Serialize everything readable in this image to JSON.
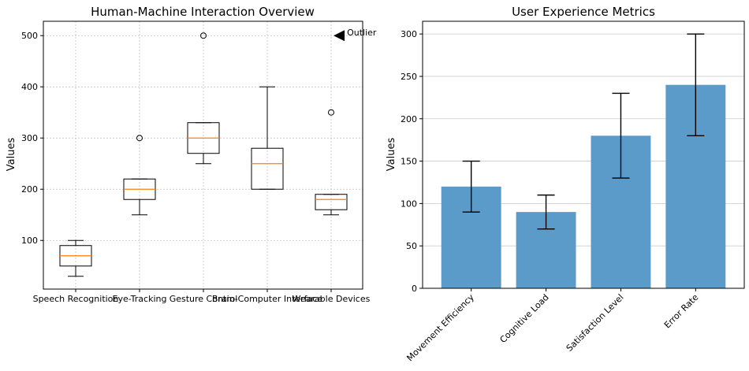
{
  "chart_data": [
    {
      "type": "box",
      "title": "Human-Machine Interaction Overview",
      "xlabel": "",
      "ylabel": "Values",
      "ylim": [
        5,
        528
      ],
      "yticks": [
        100,
        200,
        300,
        400,
        500
      ],
      "grid": true,
      "categories": [
        "Speech Recognition",
        "Eye-Tracking",
        "Gesture Control",
        "Brain-Computer Interface",
        "Wearable Devices"
      ],
      "boxes": [
        {
          "whisker_low": 30,
          "q1": 50,
          "median": 70,
          "q3": 90,
          "whisker_high": 100,
          "outliers": []
        },
        {
          "whisker_low": 150,
          "q1": 180,
          "median": 200,
          "q3": 220,
          "whisker_high": 220,
          "outliers": [
            300
          ]
        },
        {
          "whisker_low": 250,
          "q1": 270,
          "median": 300,
          "q3": 330,
          "whisker_high": 330,
          "outliers": [
            500
          ]
        },
        {
          "whisker_low": 200,
          "q1": 200,
          "median": 250,
          "q3": 280,
          "whisker_high": 400,
          "outliers": []
        },
        {
          "whisker_low": 150,
          "q1": 160,
          "median": 180,
          "q3": 190,
          "whisker_high": 190,
          "outliers": [
            350
          ]
        }
      ],
      "annotations": [
        {
          "text": "Outlier",
          "x_category_index": 4.1,
          "y": 500
        }
      ],
      "colors": {
        "box": "#000000",
        "median": "#ff7f0e",
        "grid": "#b0b0b0"
      }
    },
    {
      "type": "bar",
      "title": "User Experience Metrics",
      "xlabel": "",
      "ylabel": "Values",
      "ylim": [
        0,
        315
      ],
      "yticks": [
        0,
        50,
        100,
        150,
        200,
        250,
        300
      ],
      "grid": true,
      "categories": [
        "Movement Efficiency",
        "Cognitive Load",
        "Satisfaction Level",
        "Error Rate"
      ],
      "values": [
        120,
        90,
        180,
        240
      ],
      "errors": [
        30,
        20,
        50,
        60
      ],
      "colors": {
        "bar": "#5b9bc9",
        "error": "#000000",
        "grid": "#cccccc"
      }
    }
  ]
}
